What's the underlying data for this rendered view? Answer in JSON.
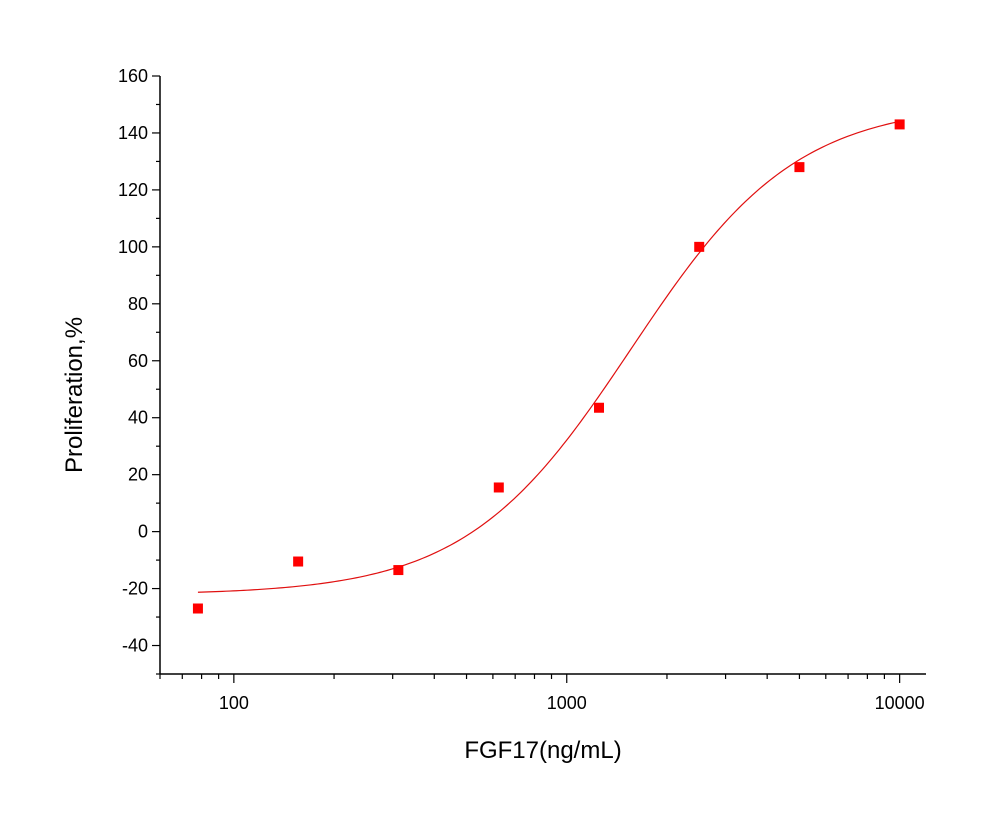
{
  "chart_data": {
    "type": "scatter",
    "xlabel": "FGF17(ng/mL)",
    "ylabel": "Proliferation,%",
    "x_scale": "log",
    "xlim": [
      60,
      12000
    ],
    "ylim": [
      -50,
      160
    ],
    "x_ticks": [
      100,
      1000,
      10000
    ],
    "x_tick_labels": [
      "100",
      "1000",
      "10000"
    ],
    "y_ticks": [
      -40,
      -20,
      0,
      20,
      40,
      60,
      80,
      100,
      120,
      140,
      160
    ],
    "y_tick_labels": [
      "-40",
      "-20",
      "0",
      "20",
      "40",
      "60",
      "80",
      "100",
      "120",
      "140",
      "160"
    ],
    "grid": false,
    "series": [
      {
        "x": [
          78,
          156,
          312,
          625,
          1250,
          2500,
          5000,
          10000
        ],
        "y": [
          -27,
          -10.5,
          -13.5,
          15.5,
          43.5,
          100,
          128,
          143
        ],
        "color": "#ff0000"
      }
    ],
    "fit_curve": {
      "type": "sigmoid-4pl",
      "bottom": -22.2,
      "top": 150.5,
      "ec50": 1560,
      "hill": 1.75,
      "x_range": [
        78,
        10000
      ],
      "color": "#e01010"
    }
  }
}
